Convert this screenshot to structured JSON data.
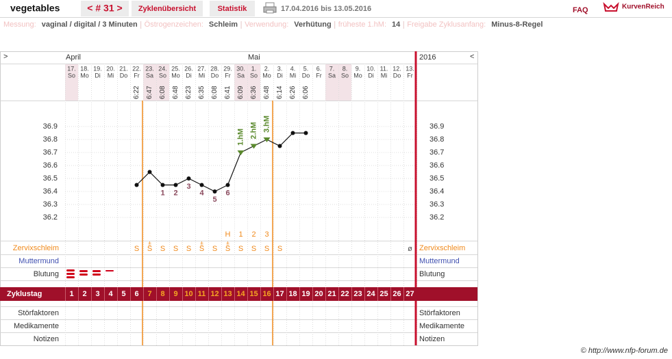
{
  "header": {
    "title": "vegetables",
    "cycle": "< # 31 >",
    "tabs": [
      "Zyklenübersicht",
      "Statistik"
    ],
    "date_range": "17.04.2016 bis 13.05.2016",
    "faq": "FAQ",
    "brand": "KurvenReich"
  },
  "settings": [
    {
      "label": "Messung:",
      "value": "vaginal / digital / 3 Minuten"
    },
    {
      "label": "Östrogenzeichen:",
      "value": "Schleim"
    },
    {
      "label": "Verwendung:",
      "value": "Verhütung"
    },
    {
      "label": "früheste 1.hM:",
      "value": "14"
    },
    {
      "label": "Freigabe Zyklusanfang:",
      "value": "Minus-8-Regel"
    }
  ],
  "chart": {
    "prev": ">",
    "next": "<",
    "year": "2016",
    "months": [
      "April",
      "Mai"
    ],
    "dates": [
      "17.",
      "18.",
      "19.",
      "20.",
      "21.",
      "22.",
      "23.",
      "24.",
      "25.",
      "26.",
      "27.",
      "28.",
      "29.",
      "30.",
      "1.",
      "2.",
      "3.",
      "4.",
      "5.",
      "6.",
      "7.",
      "8.",
      "9.",
      "10.",
      "11.",
      "12.",
      "13."
    ],
    "weekdays": [
      "So",
      "Mo",
      "Di",
      "Mi",
      "Do",
      "Fr",
      "Sa",
      "So",
      "Mo",
      "Di",
      "Mi",
      "Do",
      "Fr",
      "Sa",
      "So",
      "Mo",
      "Di",
      "Mi",
      "Do",
      "Fr",
      "Sa",
      "So",
      "Mo",
      "Di",
      "Mi",
      "Do",
      "Fr"
    ],
    "times": [
      null,
      null,
      null,
      null,
      null,
      "6:22",
      "6:47",
      "6:08",
      "6:48",
      "6:23",
      "6:35",
      "6:08",
      "6:41",
      "6:09",
      "6:36",
      "6:48",
      "6:14",
      "6:26",
      "6:06",
      null,
      null,
      null,
      null,
      null,
      null,
      null,
      null
    ],
    "temperature": {
      "ylim": [
        36.0,
        37.1
      ],
      "yticks": [
        36.9,
        36.8,
        36.7,
        36.6,
        36.5,
        36.4,
        36.3,
        36.2
      ],
      "values": [
        null,
        null,
        null,
        null,
        null,
        36.45,
        36.55,
        36.45,
        36.45,
        36.5,
        36.45,
        36.4,
        36.45,
        36.7,
        36.75,
        36.8,
        36.75,
        36.85,
        36.85,
        null,
        null,
        null,
        null,
        null,
        null,
        null,
        null
      ]
    },
    "low_labels": [
      null,
      null,
      null,
      null,
      null,
      null,
      null,
      "1",
      "2",
      "3",
      "4",
      "5",
      "6",
      null,
      null,
      null,
      null,
      null,
      null,
      null,
      null,
      null,
      null,
      null,
      null,
      null,
      null
    ],
    "hm_labels": [
      null,
      null,
      null,
      null,
      null,
      null,
      null,
      null,
      null,
      null,
      null,
      null,
      null,
      "1.hM",
      "2.hM",
      "3.hM",
      null,
      null,
      null,
      null,
      null,
      null,
      null,
      null,
      null,
      null,
      null
    ],
    "hm_row": [
      null,
      null,
      null,
      null,
      null,
      null,
      null,
      null,
      null,
      null,
      null,
      null,
      "H",
      "1",
      "2",
      "3",
      null,
      null,
      null,
      null,
      null,
      null,
      null,
      null,
      null,
      null,
      null
    ],
    "mucus": [
      null,
      null,
      null,
      null,
      null,
      "S",
      "S",
      "S",
      "S",
      "S",
      "S",
      "S",
      "S",
      "S",
      "S",
      "S",
      "S",
      null,
      null,
      null,
      null,
      null,
      null,
      null,
      null,
      null,
      "ø"
    ],
    "mucus_marks": [
      null,
      null,
      null,
      null,
      null,
      null,
      "±",
      null,
      null,
      null,
      "±",
      null,
      "±",
      null,
      null,
      null,
      null,
      null,
      null,
      null,
      null,
      null,
      null,
      null,
      null,
      null,
      null
    ],
    "cycle_days": [
      "1",
      "2",
      "3",
      "4",
      "5",
      "6",
      "7",
      "8",
      "9",
      "10",
      "11",
      "12",
      "13",
      "14",
      "15",
      "16",
      "17",
      "18",
      "19",
      "20",
      "21",
      "22",
      "23",
      "24",
      "25",
      "26",
      "27"
    ],
    "row_labels": {
      "mucus": "Zervixschleim",
      "cervix": "Muttermund",
      "bleeding": "Blutung",
      "cycle_day": "Zyklustag",
      "disturbances": "Störfaktoren",
      "medication": "Medikamente",
      "notes": "Notizen"
    }
  },
  "footer": "© http://www.nfp-forum.de"
}
